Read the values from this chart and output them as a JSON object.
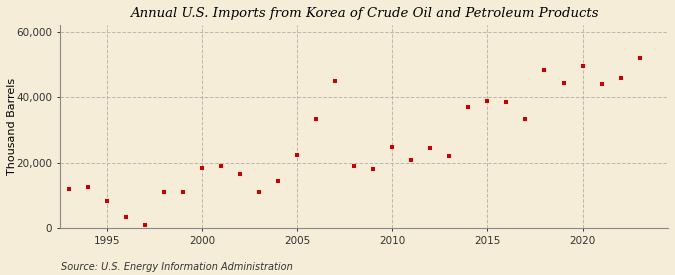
{
  "title": "Annual U.S. Imports from Korea of Crude Oil and Petroleum Products",
  "ylabel": "Thousand Barrels",
  "source": "Source: U.S. Energy Information Administration",
  "background_color": "#F5EDD8",
  "marker_color": "#CC0000",
  "grid_color": "#AAAAAA",
  "xlim": [
    1992.5,
    2024.5
  ],
  "ylim": [
    0,
    62000
  ],
  "xticks": [
    1995,
    2000,
    2005,
    2010,
    2015,
    2020
  ],
  "yticks": [
    0,
    20000,
    40000,
    60000
  ],
  "ytick_labels": [
    "0",
    "20,000",
    "40,000",
    "60,000"
  ],
  "years": [
    1993,
    1994,
    1995,
    1996,
    1997,
    1998,
    1999,
    2000,
    2001,
    2002,
    2003,
    2004,
    2005,
    2006,
    2007,
    2008,
    2009,
    2010,
    2011,
    2012,
    2013,
    2014,
    2015,
    2016,
    2017,
    2018,
    2019,
    2020,
    2021,
    2022,
    2023
  ],
  "values": [
    12000,
    12500,
    8500,
    3500,
    1000,
    11000,
    11000,
    18500,
    19000,
    16500,
    11000,
    14500,
    22500,
    33500,
    45000,
    19000,
    18000,
    25000,
    21000,
    24500,
    22000,
    37000,
    39000,
    38500,
    33500,
    48500,
    44500,
    49500,
    44000,
    46000,
    52000
  ]
}
